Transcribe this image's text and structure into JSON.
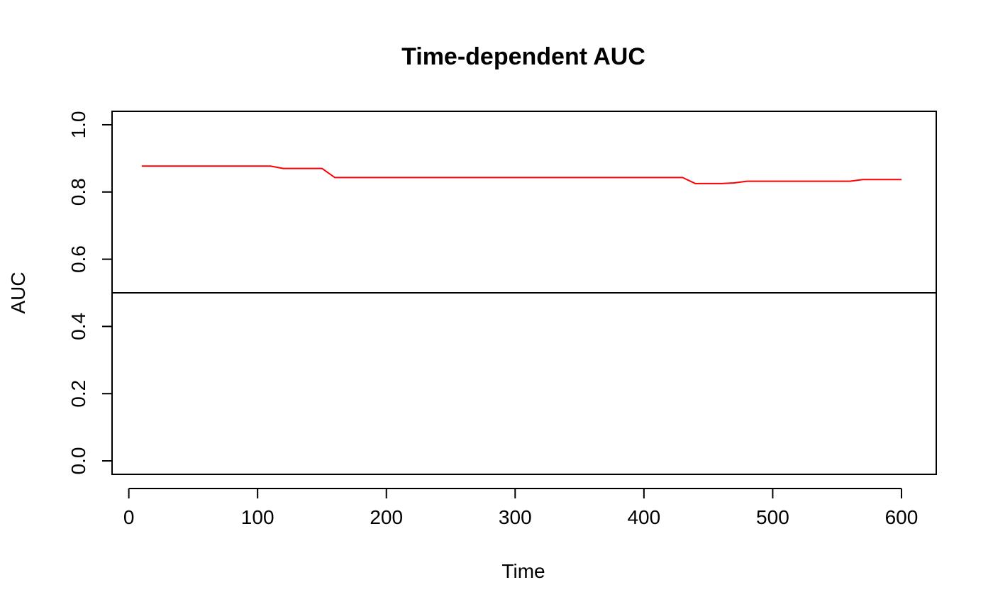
{
  "chart_data": {
    "type": "line",
    "title": "Time-dependent AUC",
    "xlabel": "Time",
    "ylabel": "AUC",
    "xlim": [
      -13,
      627
    ],
    "ylim": [
      -0.04,
      1.04
    ],
    "x_ticks": [
      0,
      100,
      200,
      300,
      400,
      500,
      600
    ],
    "y_ticks": [
      0.0,
      0.2,
      0.4,
      0.6,
      0.8,
      1.0
    ],
    "x_tick_labels": [
      "0",
      "100",
      "200",
      "300",
      "400",
      "500",
      "600"
    ],
    "y_tick_labels": [
      "0.0",
      "0.2",
      "0.4",
      "0.6",
      "0.8",
      "1.0"
    ],
    "grid": false,
    "legend": "none",
    "reference_line": {
      "y": 0.5,
      "color": "#000000"
    },
    "series": [
      {
        "color": "#ff0000",
        "x": [
          10,
          20,
          30,
          40,
          50,
          60,
          70,
          80,
          90,
          100,
          110,
          120,
          130,
          140,
          150,
          160,
          170,
          180,
          190,
          200,
          210,
          220,
          230,
          240,
          250,
          260,
          270,
          280,
          290,
          300,
          310,
          320,
          330,
          340,
          350,
          360,
          370,
          380,
          390,
          400,
          410,
          420,
          430,
          440,
          450,
          460,
          470,
          480,
          490,
          500,
          510,
          520,
          530,
          540,
          550,
          560,
          570,
          580,
          590,
          600
        ],
        "values": [
          0.877,
          0.877,
          0.877,
          0.877,
          0.877,
          0.877,
          0.877,
          0.877,
          0.877,
          0.877,
          0.877,
          0.87,
          0.87,
          0.87,
          0.87,
          0.843,
          0.843,
          0.843,
          0.843,
          0.843,
          0.843,
          0.843,
          0.843,
          0.843,
          0.843,
          0.843,
          0.843,
          0.843,
          0.843,
          0.843,
          0.843,
          0.843,
          0.843,
          0.843,
          0.843,
          0.843,
          0.843,
          0.843,
          0.843,
          0.843,
          0.843,
          0.843,
          0.843,
          0.825,
          0.825,
          0.825,
          0.827,
          0.832,
          0.832,
          0.832,
          0.832,
          0.832,
          0.832,
          0.832,
          0.832,
          0.832,
          0.837,
          0.837,
          0.837,
          0.837
        ]
      }
    ]
  }
}
